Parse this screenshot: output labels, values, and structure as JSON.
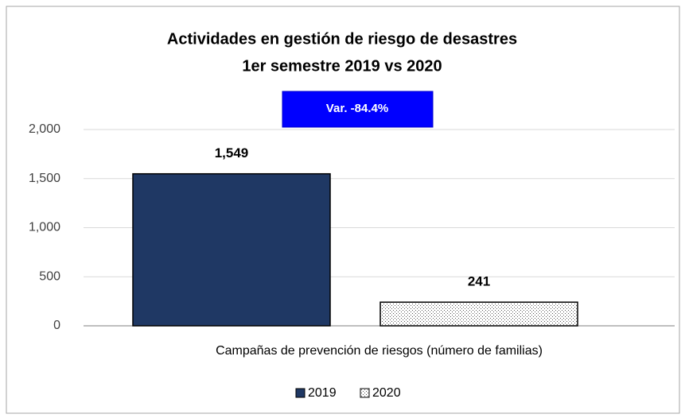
{
  "chart_data": {
    "type": "bar",
    "title": "Actividades en gestión de riesgo de desastres",
    "subtitle": "1er semestre 2019 vs 2020",
    "annotation": "Var. -84.4%",
    "categories": [
      "Campañas de prevención de riesgos (número de familias)"
    ],
    "series": [
      {
        "name": "2019",
        "color": "#1f3864",
        "values": [
          1549
        ],
        "value_labels": [
          "1,549"
        ]
      },
      {
        "name": "2020",
        "color": "#ffffff",
        "pattern": "dots",
        "values": [
          241
        ],
        "value_labels": [
          "241"
        ]
      }
    ],
    "ylim": [
      0,
      2000
    ],
    "yticks": [
      0,
      500,
      {
        "value": 1000,
        "label": "1,000"
      },
      {
        "value": 1500,
        "label": "1,500"
      },
      {
        "value": 2000,
        "label": "2,000"
      }
    ],
    "grid": true,
    "legend": "bottom"
  }
}
